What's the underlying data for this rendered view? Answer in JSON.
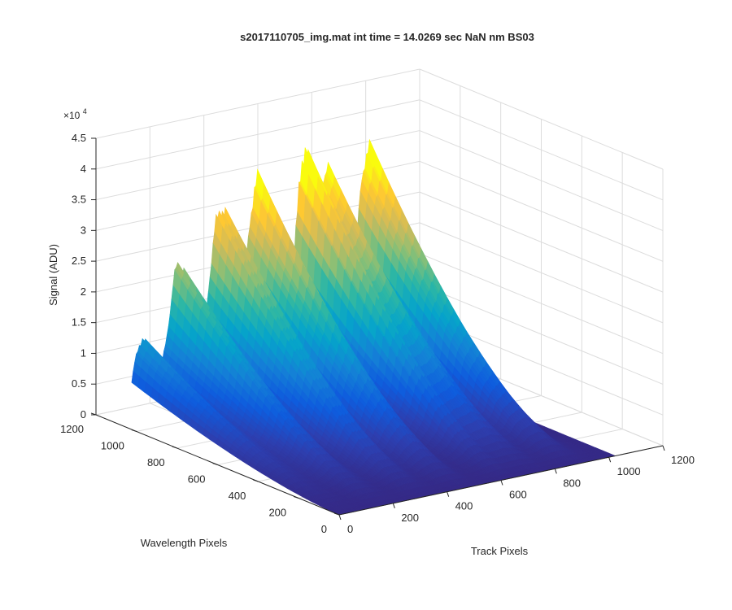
{
  "chart_data": {
    "type": "surface",
    "title": "s2017110705_img.mat int time = 14.0269 sec  NaN nm BS03",
    "xlabel": "Track Pixels",
    "ylabel": "Wavelength Pixels",
    "zlabel": "Signal (ADU)",
    "z_exponent_label": "×10",
    "z_exponent_power": "4",
    "xlim": [
      0,
      1200
    ],
    "ylim": [
      0,
      1200
    ],
    "zlim": [
      0,
      45000
    ],
    "x_ticks": [
      "0",
      "200",
      "400",
      "600",
      "800",
      "1000",
      "1200"
    ],
    "y_ticks": [
      "0",
      "200",
      "400",
      "600",
      "800",
      "1000",
      "1200"
    ],
    "z_ticks": [
      "0",
      "0.5",
      "1",
      "1.5",
      "2",
      "2.5",
      "3",
      "3.5",
      "4",
      "4.5"
    ],
    "grid": true,
    "colormap": "parula",
    "data_extent": {
      "x": [
        0,
        1024
      ],
      "y": [
        0,
        1024
      ]
    },
    "peaks_at_wavelength_1024": {
      "track_pixel": [
        40,
        180,
        330,
        470,
        640,
        740,
        880
      ],
      "signal_adu": [
        13000,
        22000,
        30000,
        34000,
        33000,
        31000,
        35000
      ]
    }
  },
  "colors": {
    "axis": "#262626",
    "grid": "#dcdcdc",
    "parula_stops": [
      "#352a87",
      "#2d3fb0",
      "#0f5cdd",
      "#1481d6",
      "#06a4ca",
      "#2eb7a4",
      "#87bf77",
      "#d1bb59",
      "#fec832",
      "#f9fb0e"
    ]
  }
}
